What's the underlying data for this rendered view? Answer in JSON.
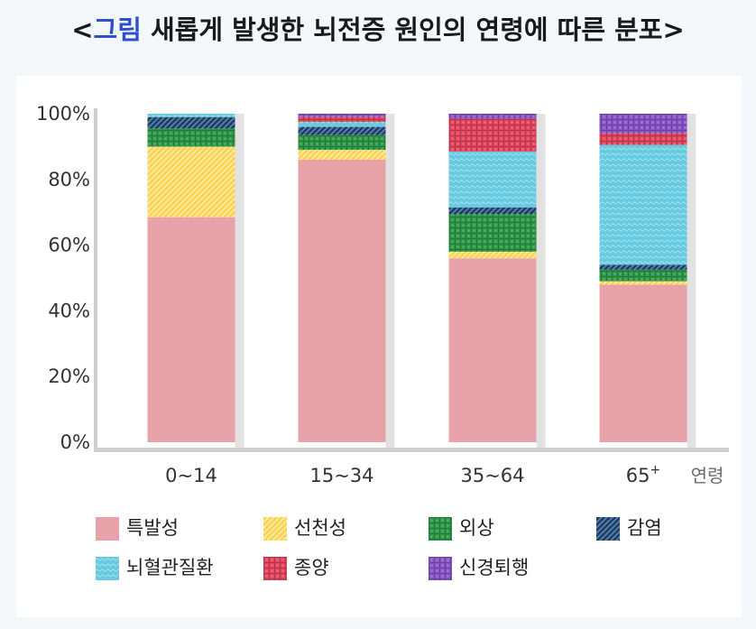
{
  "title": {
    "open": "<",
    "accent": "그림",
    "rest": " 새롭게 발생한 뇌전증 원인의 연령에 따른 분포>"
  },
  "chart_data": {
    "type": "bar",
    "stacked": true,
    "title": "<그림 새롭게 발생한 뇌전증 원인의 연령에 따른 분포>",
    "xlabel": "연령",
    "ylabel": "",
    "ylim": [
      0,
      100
    ],
    "yticks": [
      "0%",
      "20%",
      "40%",
      "60%",
      "80%",
      "100%"
    ],
    "ytick_values": [
      0,
      20,
      40,
      60,
      80,
      100
    ],
    "categories": [
      "0~14",
      "15~34",
      "35~64",
      "65"
    ],
    "category_superscripts": [
      "",
      "",
      "",
      "+"
    ],
    "series": [
      {
        "name": "특발성",
        "color": "#e8a3aa",
        "pattern": "solid",
        "values": [
          68.5,
          86,
          56,
          48
        ]
      },
      {
        "name": "선천성",
        "color": "#fbd34e",
        "pattern": "diagonal",
        "values": [
          21.5,
          3,
          2,
          1
        ]
      },
      {
        "name": "외상",
        "color": "#2e9a48",
        "pattern": "grid",
        "values": [
          5.5,
          4.5,
          11.5,
          3.5
        ]
      },
      {
        "name": "감염",
        "color": "#17406e",
        "pattern": "diagonal",
        "values": [
          3.5,
          2.5,
          2,
          1.5
        ]
      },
      {
        "name": "뇌혈관질환",
        "color": "#66cbe0",
        "pattern": "wave",
        "values": [
          1,
          1.5,
          17,
          36.5
        ]
      },
      {
        "name": "종양",
        "color": "#e5455e",
        "pattern": "grid",
        "values": [
          0,
          1.5,
          10,
          3.5
        ]
      },
      {
        "name": "신경퇴행",
        "color": "#8a55c8",
        "pattern": "grid",
        "values": [
          0,
          1,
          1.5,
          6
        ]
      }
    ],
    "legend_position": "bottom",
    "grid": false
  }
}
